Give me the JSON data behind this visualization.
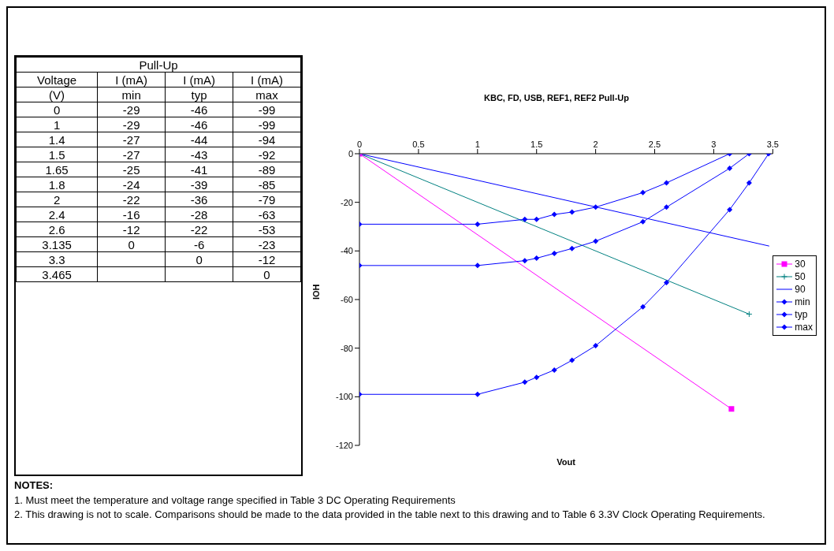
{
  "chart_data": [
    {
      "type": "heatmap",
      "title": "Pull-Up",
      "annotations": [
        "Voltage",
        "(V)",
        "I (mA)"
      ],
      "data_labels": true,
      "categories": [
        "min",
        "typ",
        "max"
      ],
      "y_categories": [
        "0",
        "1",
        "1.4",
        "1.5",
        "1.65",
        "1.8",
        "2",
        "2.4",
        "2.6",
        "3.135",
        "3.3",
        "3.465"
      ],
      "cells": [
        [
          -29,
          -46,
          -99
        ],
        [
          -29,
          -46,
          -99
        ],
        [
          -27,
          -44,
          -94
        ],
        [
          -27,
          -43,
          -92
        ],
        [
          -25,
          -41,
          -89
        ],
        [
          -24,
          -39,
          -85
        ],
        [
          -22,
          -36,
          -79
        ],
        [
          -16,
          -28,
          -63
        ],
        [
          -12,
          -22,
          -53
        ],
        [
          0,
          -6,
          -23
        ],
        [
          null,
          0,
          -12
        ],
        [
          null,
          null,
          0
        ]
      ]
    },
    {
      "type": "line",
      "title": "KBC, FD, USB, REF1, REF2 Pull-Up",
      "xlabel": "Vout",
      "ylabel": "IOH",
      "annotations": [
        "NOTES:",
        "1.  Must meet the temperature and voltage range specified in Table 3 DC Operating Requirements",
        "2.  This drawing is not to scale. Comparisons should be made to the data provided in the table next to this drawing and to Table 6 3.3V Clock Operating Requirements."
      ],
      "x": [
        0,
        1,
        1.4,
        1.5,
        1.65,
        1.8,
        2,
        2.4,
        2.6,
        3.135,
        3.3,
        3.465
      ],
      "series": [
        {
          "name": "30",
          "color": "#ff00ff",
          "marker": "square",
          "x": [
            0,
            3.15
          ],
          "values": [
            0,
            -105
          ]
        },
        {
          "name": "50",
          "color": "#008080",
          "marker": "cross",
          "x": [
            0,
            3.3
          ],
          "values": [
            0,
            -66
          ]
        },
        {
          "name": "90",
          "color": "#0000ff",
          "marker": "none",
          "x": [
            0,
            3.47
          ],
          "values": [
            0,
            -38
          ]
        },
        {
          "name": "min",
          "color": "#0000ff",
          "marker": "diamond",
          "values": [
            -29,
            -29,
            -27,
            -27,
            -25,
            -24,
            -22,
            -16,
            -12,
            0,
            null,
            null
          ]
        },
        {
          "name": "typ",
          "color": "#0000ff",
          "marker": "diamond",
          "values": [
            -46,
            -46,
            -44,
            -43,
            -41,
            -39,
            -36,
            -28,
            -22,
            -6,
            0,
            null
          ]
        },
        {
          "name": "max",
          "color": "#0000ff",
          "marker": "diamond",
          "values": [
            -99,
            -99,
            -94,
            -92,
            -89,
            -85,
            -79,
            -63,
            -53,
            -23,
            -12,
            0
          ]
        }
      ],
      "xlim": [
        0,
        3.5
      ],
      "xticks": [
        0,
        0.5,
        1,
        1.5,
        2,
        2.5,
        3,
        3.5
      ],
      "ylim": [
        -120,
        0
      ],
      "yticks": [
        -120,
        -100,
        -80,
        -60,
        -40,
        -20,
        0
      ],
      "grid": false,
      "legend": "right"
    }
  ]
}
